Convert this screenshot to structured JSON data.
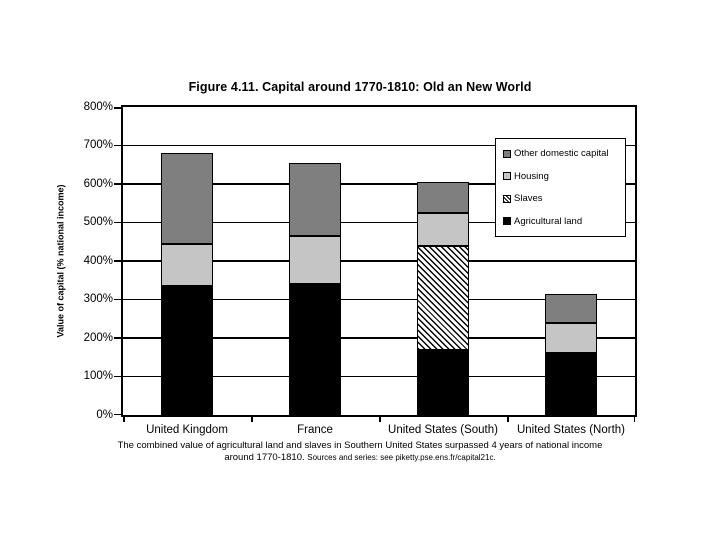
{
  "figure": {
    "title": "Figure 4.11. Capital around 1770-1810: Old an New World",
    "ylabel": "Value of capital (% national income)",
    "caption_line1": "The combined value of agricultural land and slaves in Southern United States surpassed 4 years of national income",
    "caption_line2_main": "around 1770-1810.",
    "caption_line2_source": "Sources and series: see piketty.pse.ens.fr/capital21c."
  },
  "chart_data": {
    "type": "bar",
    "stacked": true,
    "title": "Figure 4.11. Capital around 1770-1810: Old an New World",
    "xlabel": "",
    "ylabel": "Value of capital (% national income)",
    "ylim": [
      0,
      800
    ],
    "ytick_step": 100,
    "ytick_suffix": "%",
    "grid": true,
    "legend_position": "upper-right",
    "categories": [
      "United Kingdom",
      "France",
      "United States (South)",
      "United States (North)"
    ],
    "series": [
      {
        "name": "Agricultural land",
        "style": "solid",
        "color": "#000000",
        "values": [
          335,
          340,
          170,
          160
        ]
      },
      {
        "name": "Slaves",
        "style": "hatch",
        "color": "#000000",
        "values": [
          0,
          0,
          270,
          0
        ]
      },
      {
        "name": "Housing",
        "style": "solid",
        "color": "#c5c5c5",
        "values": [
          110,
          125,
          85,
          80
        ]
      },
      {
        "name": "Other domestic capital",
        "style": "solid",
        "color": "#7f7f7f",
        "values": [
          235,
          190,
          80,
          75
        ]
      }
    ],
    "stack_order_note": "series listed bottom-to-top",
    "legend_order": [
      "Other domestic capital",
      "Housing",
      "Slaves",
      "Agricultural land"
    ],
    "approx_totals": [
      680,
      655,
      605,
      315
    ]
  }
}
